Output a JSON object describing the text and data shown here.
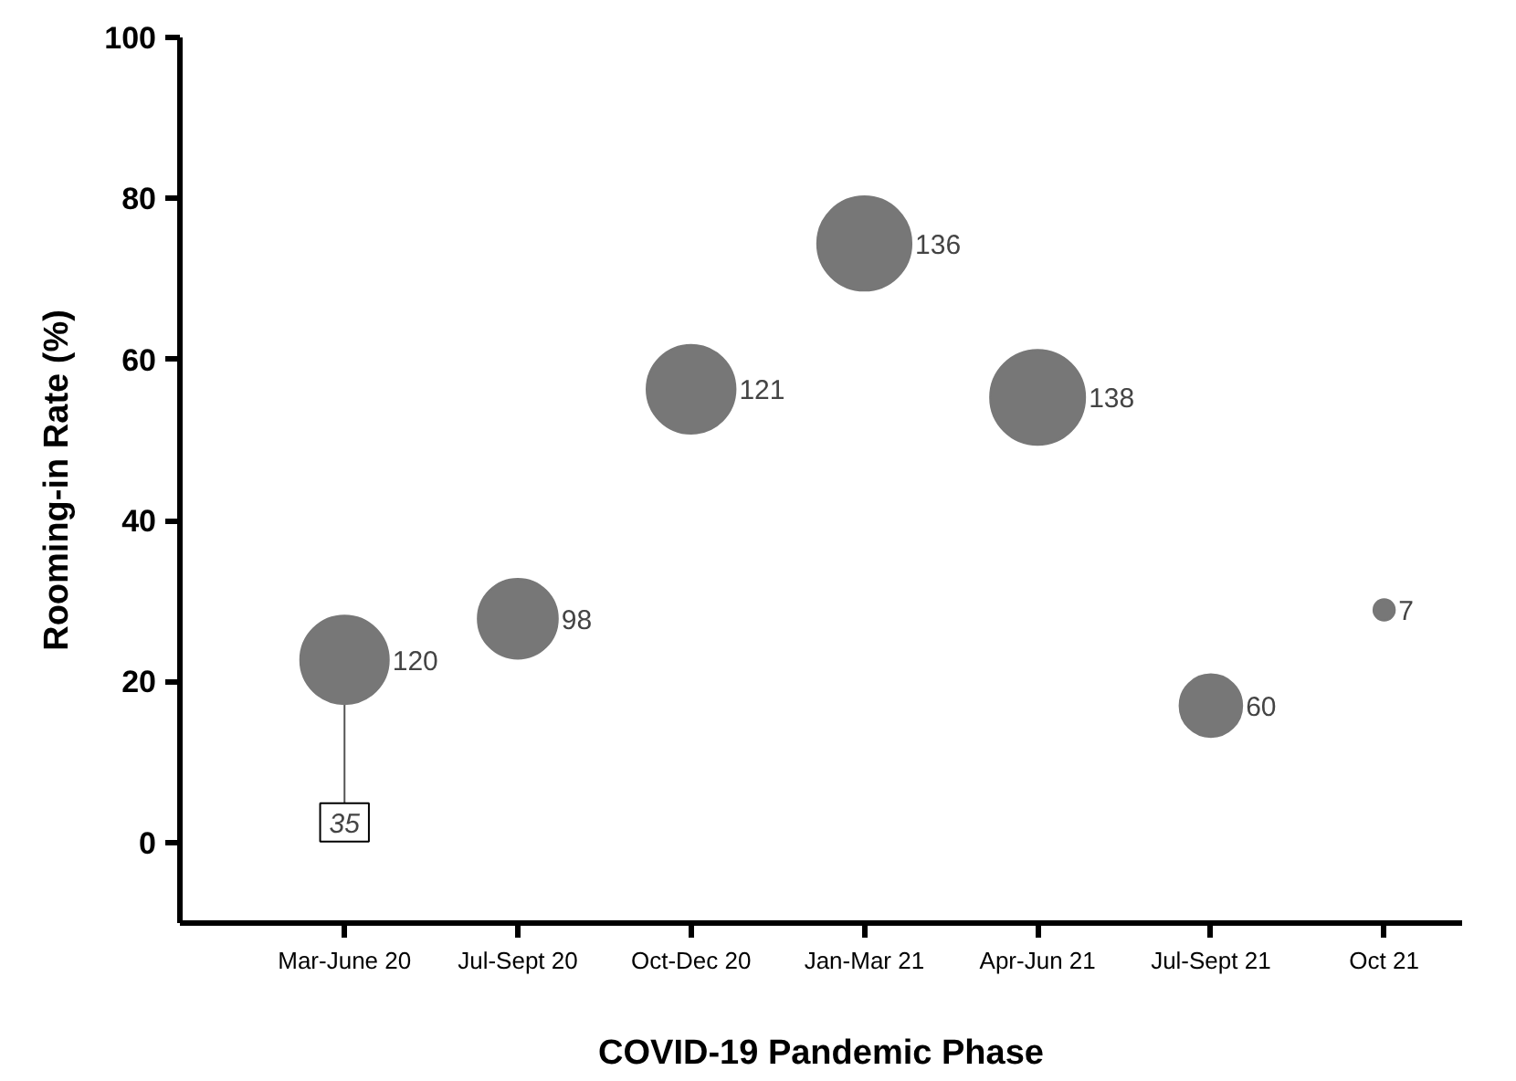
{
  "chart_data": {
    "type": "bubble",
    "xlabel": "COVID-19 Pandemic Phase",
    "ylabel": "Rooming-in Rate (%)",
    "categories": [
      "Mar-June 20",
      "Jul-Sept 20",
      "Oct-Dec 20",
      "Jan-Mar 21",
      "Apr-Jun 21",
      "Jul-Sept 21",
      "Oct 21"
    ],
    "series": [
      {
        "color": "#777777",
        "values": [
          22.7,
          27.8,
          56.3,
          74.4,
          55.3,
          17.0,
          28.9
        ],
        "sizes": [
          120,
          98,
          121,
          136,
          138,
          60,
          7
        ],
        "value_labels": [
          "120",
          "98",
          "121",
          "136",
          "138",
          "60",
          "7"
        ]
      }
    ],
    "ylim": [
      -10,
      100
    ],
    "yticks": [
      0,
      20,
      40,
      60,
      80,
      100
    ],
    "grid": false,
    "annotations": [
      {
        "text": "35",
        "x": "Mar-June 20",
        "y": 2.5
      }
    ]
  }
}
